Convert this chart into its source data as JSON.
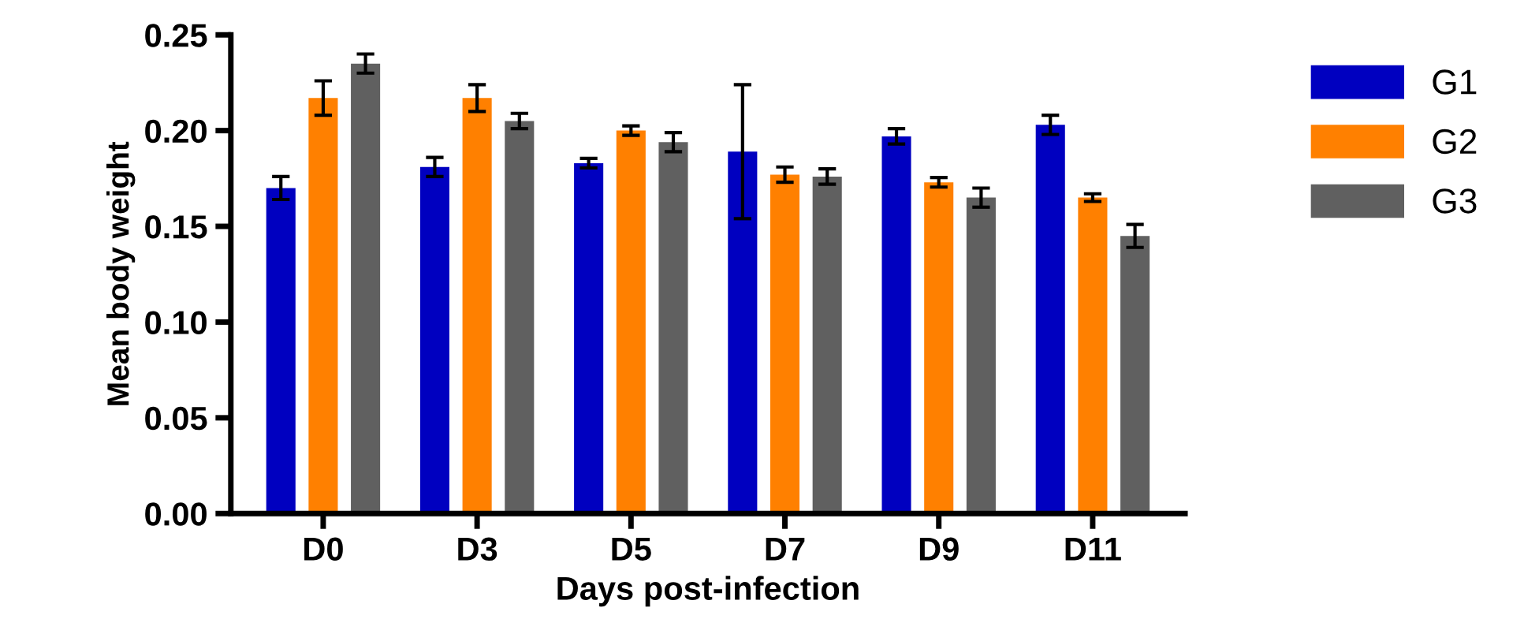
{
  "chart_data": {
    "type": "bar",
    "xlabel": "Days post-infection",
    "ylabel": "Mean body weight",
    "categories": [
      "D0",
      "D3",
      "D5",
      "D7",
      "D9",
      "D11"
    ],
    "series": [
      {
        "name": "G1",
        "color": "#0000c0",
        "values": [
          0.17,
          0.181,
          0.183,
          0.189,
          0.197,
          0.203
        ],
        "errors": [
          0.006,
          0.005,
          0.0025,
          0.035,
          0.004,
          0.005
        ]
      },
      {
        "name": "G2",
        "color": "#ff8000",
        "values": [
          0.217,
          0.217,
          0.2,
          0.177,
          0.173,
          0.165
        ],
        "errors": [
          0.009,
          0.007,
          0.0025,
          0.004,
          0.0025,
          0.002
        ]
      },
      {
        "name": "G3",
        "color": "#606060",
        "values": [
          0.235,
          0.205,
          0.194,
          0.176,
          0.165,
          0.145
        ],
        "errors": [
          0.005,
          0.004,
          0.005,
          0.004,
          0.005,
          0.006
        ]
      }
    ],
    "ylim": [
      0,
      0.25
    ],
    "yticks": [
      {
        "value": 0,
        "label": "0.00"
      },
      {
        "value": 0.05,
        "label": "0.05"
      },
      {
        "value": 0.1,
        "label": "0.10"
      },
      {
        "value": 0.15,
        "label": "0.15"
      },
      {
        "value": 0.2,
        "label": "0.20"
      },
      {
        "value": 0.25,
        "label": "0.25"
      }
    ],
    "grid": false,
    "legend": "right"
  }
}
